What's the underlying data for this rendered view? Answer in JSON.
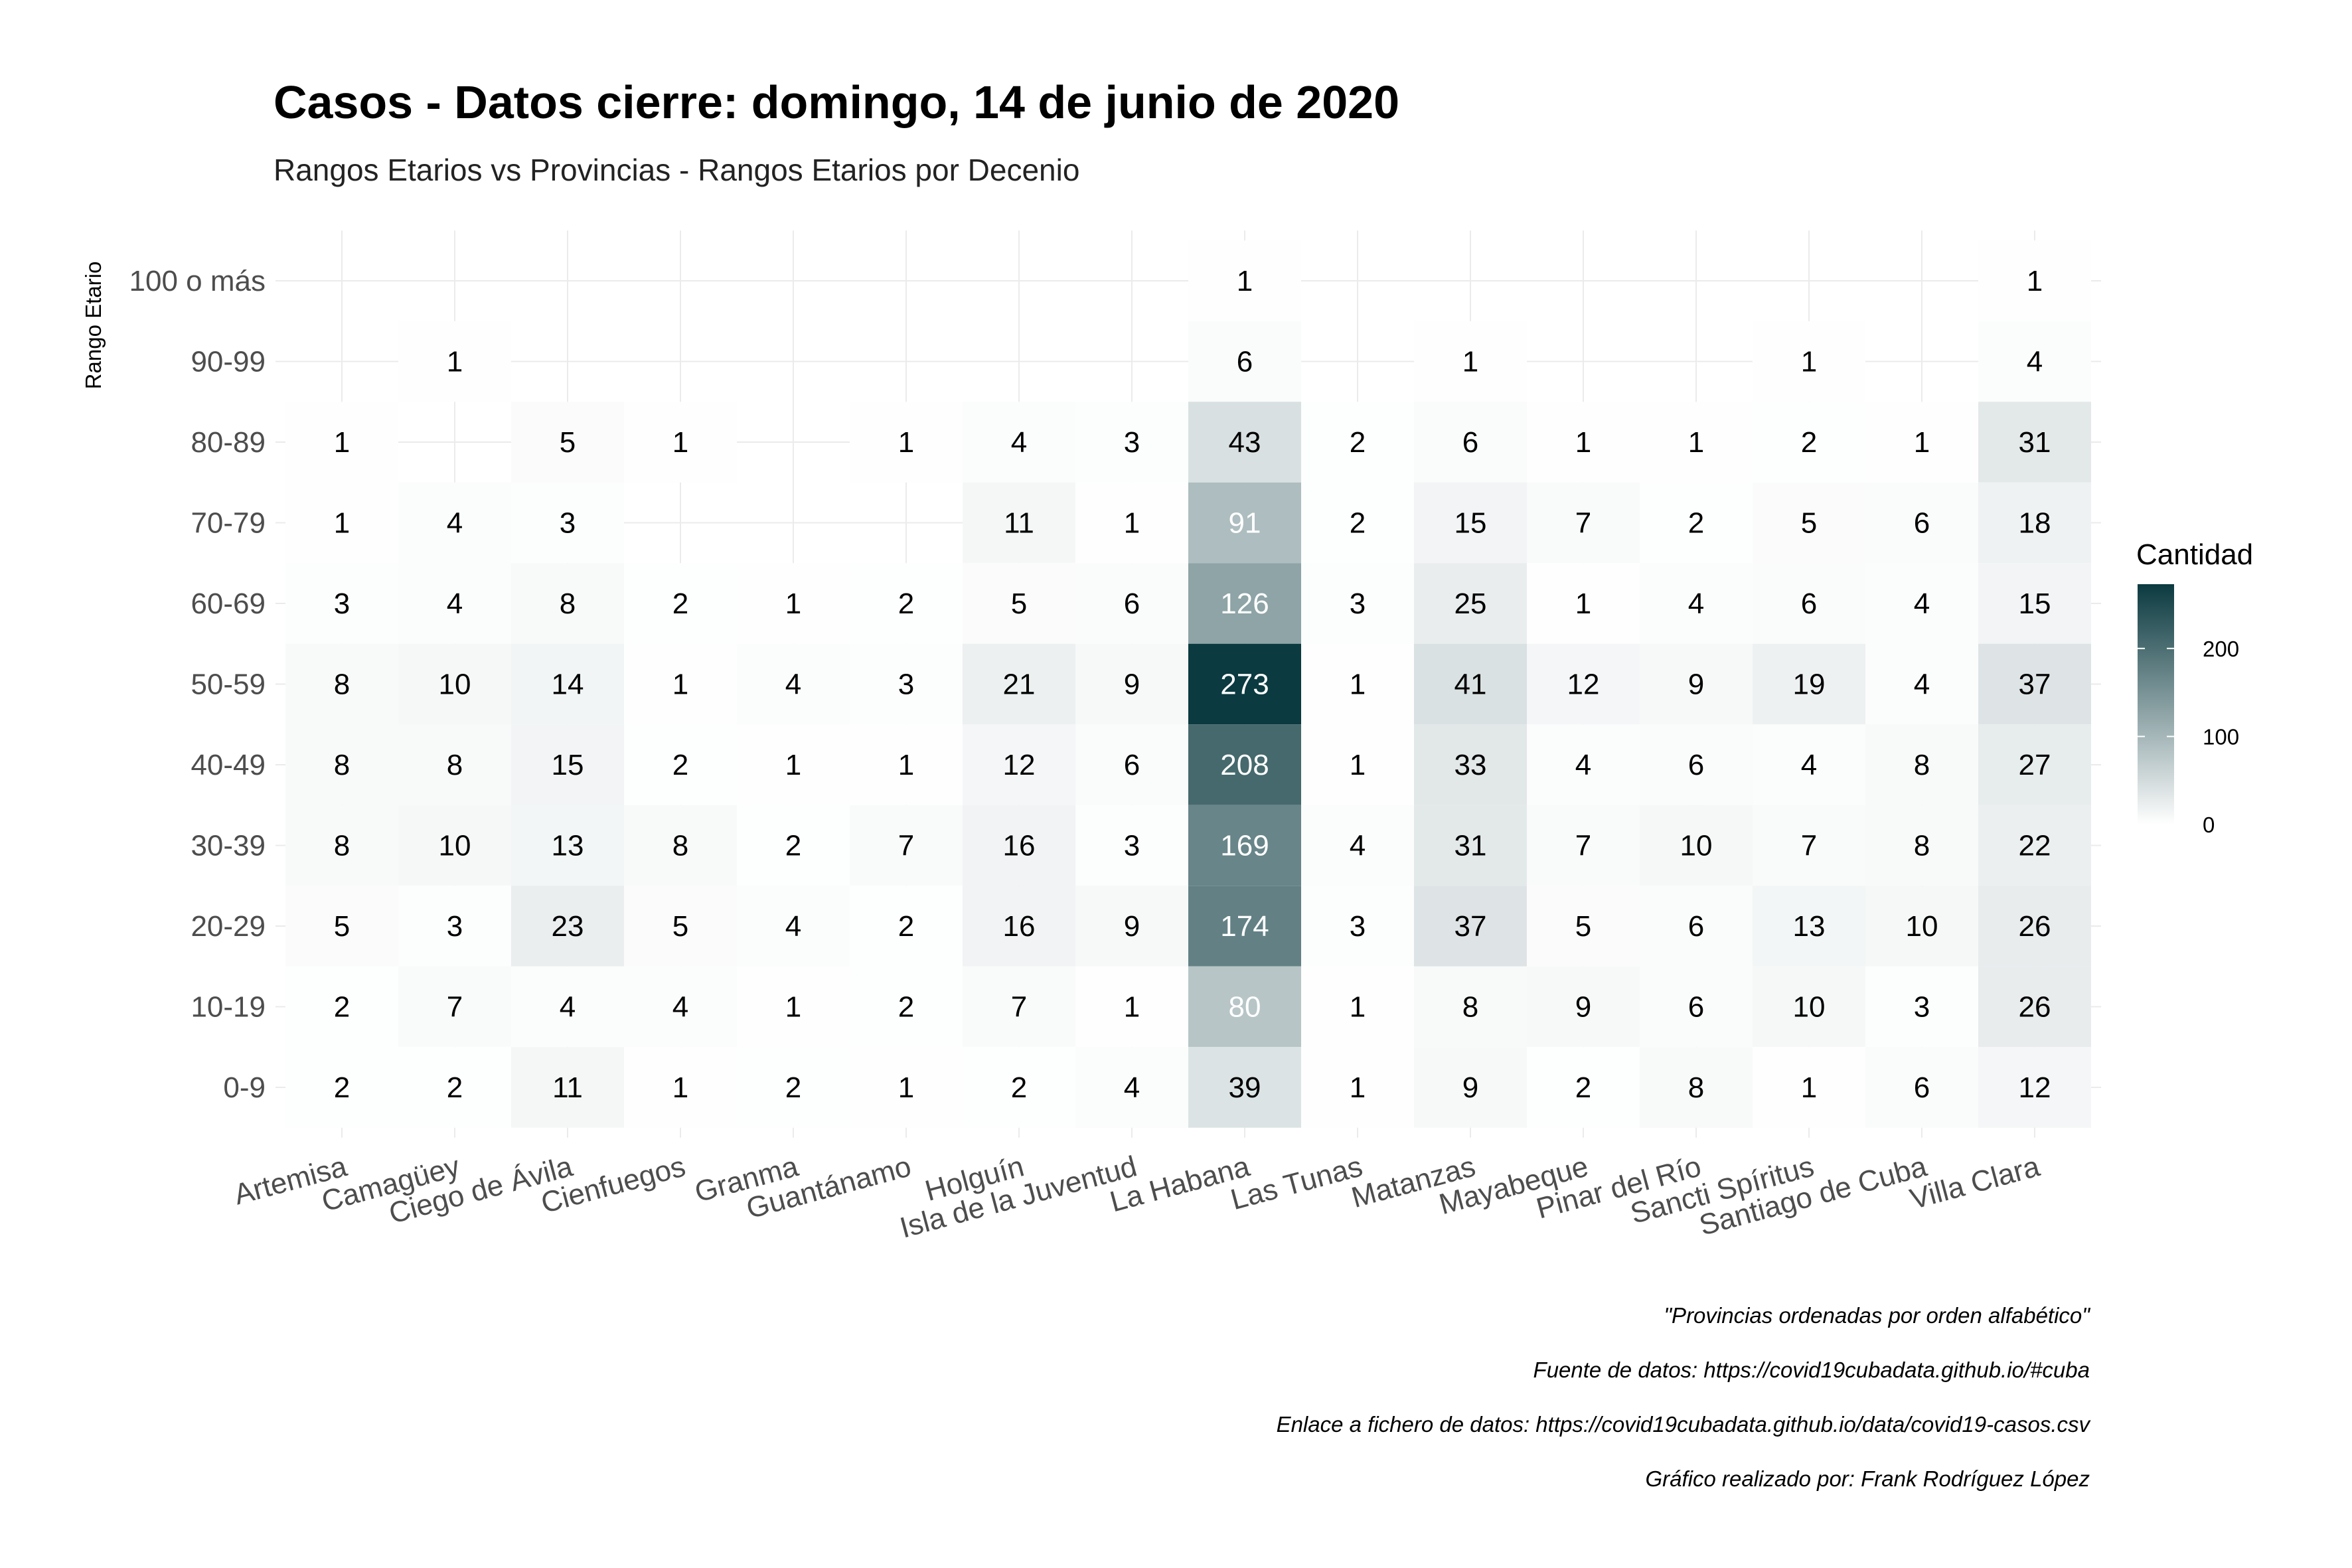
{
  "chart_data": {
    "type": "heatmap",
    "title": "Casos - Datos cierre: domingo, 14 de junio de 2020",
    "subtitle": "Rangos Etarios vs Provincias - Rangos Etarios por Decenio",
    "xlabel": "",
    "ylabel": "Rango Etario",
    "x_categories": [
      "Artemisa",
      "Camagüey",
      "Ciego de Ávila",
      "Cienfuegos",
      "Granma",
      "Guantánamo",
      "Holguín",
      "Isla de la Juventud",
      "La Habana",
      "Las Tunas",
      "Matanzas",
      "Mayabeque",
      "Pinar del Río",
      "Sancti Spíritus",
      "Santiago de Cuba",
      "Villa Clara"
    ],
    "y_categories": [
      "100 o más",
      "90-99",
      "80-89",
      "70-79",
      "60-69",
      "50-59",
      "40-49",
      "30-39",
      "20-29",
      "10-19",
      "0-9"
    ],
    "values": [
      [
        null,
        null,
        null,
        null,
        null,
        null,
        null,
        null,
        1,
        null,
        null,
        null,
        null,
        null,
        null,
        1
      ],
      [
        null,
        1,
        null,
        null,
        null,
        null,
        null,
        null,
        6,
        null,
        1,
        null,
        null,
        1,
        null,
        4
      ],
      [
        1,
        null,
        5,
        1,
        null,
        1,
        4,
        3,
        43,
        2,
        6,
        1,
        1,
        2,
        1,
        31
      ],
      [
        1,
        4,
        3,
        null,
        null,
        null,
        11,
        1,
        91,
        2,
        15,
        7,
        2,
        5,
        6,
        18
      ],
      [
        3,
        4,
        8,
        2,
        1,
        2,
        5,
        6,
        126,
        3,
        25,
        1,
        4,
        6,
        4,
        15
      ],
      [
        8,
        10,
        14,
        1,
        4,
        3,
        21,
        9,
        273,
        1,
        41,
        12,
        9,
        19,
        4,
        37
      ],
      [
        8,
        8,
        15,
        2,
        1,
        1,
        12,
        6,
        208,
        1,
        33,
        4,
        6,
        4,
        8,
        27
      ],
      [
        8,
        10,
        13,
        8,
        2,
        7,
        16,
        3,
        169,
        4,
        31,
        7,
        10,
        7,
        8,
        22
      ],
      [
        5,
        3,
        23,
        5,
        4,
        2,
        16,
        9,
        174,
        3,
        37,
        5,
        6,
        13,
        10,
        26
      ],
      [
        2,
        7,
        4,
        4,
        1,
        2,
        7,
        1,
        80,
        1,
        8,
        9,
        6,
        10,
        3,
        26
      ],
      [
        2,
        2,
        11,
        1,
        2,
        1,
        2,
        4,
        39,
        1,
        9,
        2,
        8,
        1,
        6,
        12
      ]
    ],
    "color_scale": {
      "low": "#ffffff",
      "high": "#0b3a40",
      "min": 0,
      "max": 273
    },
    "legend": {
      "title": "Cantidad",
      "ticks": [
        0,
        100,
        200
      ],
      "position": "right"
    },
    "grid": true
  },
  "captions": [
    "\"Provincias ordenadas por orden alfabético\"",
    "Fuente de datos: https://covid19cubadata.github.io/#cuba",
    "Enlace a fichero de datos: https://covid19cubadata.github.io/data/covid19-casos.csv",
    "Gráfico realizado por: Frank Rodríguez López"
  ]
}
